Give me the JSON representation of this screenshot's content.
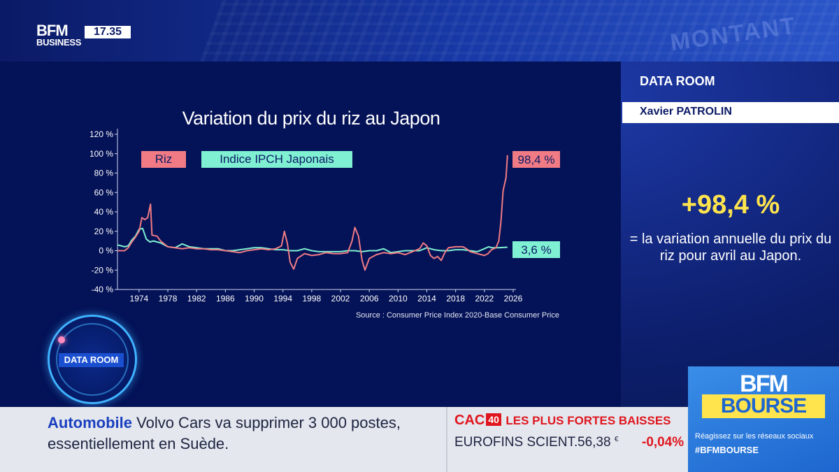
{
  "header": {
    "logo_brand": "BFM",
    "logo_sub": "BUSINESS",
    "clock": "17.35",
    "background_word": "MONTANT"
  },
  "sidebar": {
    "section": "DATA ROOM",
    "author": "Xavier PATROLIN",
    "highlight_value": "+98,4 %",
    "highlight_text": "= la variation annuelle du prix du riz pour avril au Japon."
  },
  "badge": {
    "label": "DATA ROOM"
  },
  "ticker": {
    "category": "Automobile",
    "headline_line1": "Volvo Cars va supprimer 3 000 postes,",
    "headline_line2": "essentiellement en Suède."
  },
  "market": {
    "index_name": "CAC",
    "index_number": "40",
    "list_title": "LES PLUS FORTES BAISSES",
    "stock": {
      "name": "EUROFINS SCIENT.",
      "price": "56,38",
      "currency": "€",
      "change": "-0,04%"
    }
  },
  "promo": {
    "brand": "BFM",
    "product": "BOURSE",
    "line": "Réagissez sur les réseaux sociaux",
    "hashtag": "#BFMBOURSE"
  },
  "colors": {
    "rice": "#f07b84",
    "cpi": "#7ff0d2",
    "highlight": "#ffe44d"
  },
  "chart_data": {
    "type": "line",
    "title": "Variation du prix du riz au Japon",
    "source": "Source : Consumer Price Index 2020-Base Consumer Price",
    "ylim": [
      -40,
      120
    ],
    "xlim": [
      1971,
      2026
    ],
    "y_ticks": [
      "120 %",
      "100 %",
      "80 %",
      "60 %",
      "40 %",
      "20 %",
      "0 %",
      "-20 %",
      "-40 %"
    ],
    "x_ticks": [
      "1974",
      "1978",
      "1982",
      "1986",
      "1990",
      "1994",
      "1998",
      "2002",
      "2006",
      "2010",
      "2014",
      "2018",
      "2022",
      "2026"
    ],
    "end_labels": {
      "rice": "98,4 %",
      "cpi": "3,6 %"
    },
    "series": [
      {
        "name": "Riz",
        "color": "#f07b84",
        "points": [
          [
            1971.0,
            0
          ],
          [
            1972.0,
            0
          ],
          [
            1972.5,
            3
          ],
          [
            1973.0,
            9
          ],
          [
            1973.5,
            14
          ],
          [
            1974.0,
            20
          ],
          [
            1974.4,
            34
          ],
          [
            1974.8,
            32
          ],
          [
            1975.2,
            34
          ],
          [
            1975.6,
            48
          ],
          [
            1975.8,
            16
          ],
          [
            1976.5,
            15
          ],
          [
            1977.0,
            10
          ],
          [
            1978.0,
            4
          ],
          [
            1979.0,
            3
          ],
          [
            1980.0,
            2
          ],
          [
            1981.0,
            3
          ],
          [
            1982.0,
            2
          ],
          [
            1983.0,
            2
          ],
          [
            1984.0,
            1
          ],
          [
            1985.0,
            1
          ],
          [
            1986.0,
            0
          ],
          [
            1987.0,
            -1
          ],
          [
            1988.0,
            -2
          ],
          [
            1989.0,
            0
          ],
          [
            1990.0,
            1
          ],
          [
            1991.0,
            2
          ],
          [
            1992.0,
            1
          ],
          [
            1993.0,
            2
          ],
          [
            1993.8,
            5
          ],
          [
            1994.2,
            20
          ],
          [
            1994.6,
            8
          ],
          [
            1995.0,
            -12
          ],
          [
            1995.5,
            -19
          ],
          [
            1996.0,
            -8
          ],
          [
            1997.0,
            -3
          ],
          [
            1998.0,
            -5
          ],
          [
            1999.0,
            -4
          ],
          [
            2000.0,
            -2
          ],
          [
            2001.0,
            -3
          ],
          [
            2002.0,
            -3
          ],
          [
            2003.0,
            -2
          ],
          [
            2003.6,
            10
          ],
          [
            2004.0,
            24
          ],
          [
            2004.5,
            15
          ],
          [
            2005.0,
            -10
          ],
          [
            2005.4,
            -20
          ],
          [
            2006.0,
            -8
          ],
          [
            2007.0,
            -4
          ],
          [
            2008.0,
            -2
          ],
          [
            2009.0,
            -3
          ],
          [
            2010.0,
            -2
          ],
          [
            2011.0,
            -4
          ],
          [
            2012.0,
            -1
          ],
          [
            2013.0,
            2
          ],
          [
            2013.5,
            8
          ],
          [
            2014.0,
            5
          ],
          [
            2014.5,
            -5
          ],
          [
            2015.0,
            -8
          ],
          [
            2015.5,
            -6
          ],
          [
            2016.0,
            -10
          ],
          [
            2016.5,
            -2
          ],
          [
            2017.0,
            3
          ],
          [
            2018.0,
            4
          ],
          [
            2019.0,
            4
          ],
          [
            2019.5,
            2
          ],
          [
            2020.0,
            -1
          ],
          [
            2021.0,
            -3
          ],
          [
            2022.0,
            -5
          ],
          [
            2022.5,
            -3
          ],
          [
            2023.0,
            1
          ],
          [
            2023.6,
            3
          ],
          [
            2024.0,
            10
          ],
          [
            2024.3,
            30
          ],
          [
            2024.6,
            62
          ],
          [
            2025.0,
            75
          ],
          [
            2025.2,
            98.4
          ]
        ]
      },
      {
        "name": "Indice IPCH Japonais",
        "color": "#7ff0d2",
        "points": [
          [
            1971.0,
            6
          ],
          [
            1972.0,
            4
          ],
          [
            1972.5,
            5
          ],
          [
            1973.0,
            11
          ],
          [
            1973.5,
            15
          ],
          [
            1974.0,
            22
          ],
          [
            1974.5,
            23
          ],
          [
            1975.0,
            12
          ],
          [
            1975.5,
            9
          ],
          [
            1976.0,
            10
          ],
          [
            1977.0,
            8
          ],
          [
            1978.0,
            4
          ],
          [
            1979.0,
            3
          ],
          [
            1980.0,
            7
          ],
          [
            1981.0,
            4
          ],
          [
            1982.0,
            3
          ],
          [
            1983.0,
            2
          ],
          [
            1984.0,
            2
          ],
          [
            1985.0,
            2
          ],
          [
            1986.0,
            0
          ],
          [
            1987.0,
            0
          ],
          [
            1988.0,
            1
          ],
          [
            1989.0,
            2
          ],
          [
            1990.0,
            3
          ],
          [
            1991.0,
            3
          ],
          [
            1992.0,
            2
          ],
          [
            1993.0,
            1
          ],
          [
            1994.0,
            1
          ],
          [
            1995.0,
            0
          ],
          [
            1996.0,
            0
          ],
          [
            1997.0,
            2
          ],
          [
            1998.0,
            0
          ],
          [
            1999.0,
            -1
          ],
          [
            2000.0,
            -1
          ],
          [
            2001.0,
            -1
          ],
          [
            2002.0,
            -1
          ],
          [
            2003.0,
            0
          ],
          [
            2004.0,
            0
          ],
          [
            2005.0,
            -1
          ],
          [
            2006.0,
            0
          ],
          [
            2007.0,
            0
          ],
          [
            2008.0,
            2
          ],
          [
            2009.0,
            -2
          ],
          [
            2010.0,
            -1
          ],
          [
            2011.0,
            0
          ],
          [
            2012.0,
            0
          ],
          [
            2013.0,
            0
          ],
          [
            2014.0,
            3
          ],
          [
            2015.0,
            1
          ],
          [
            2016.0,
            0
          ],
          [
            2017.0,
            0
          ],
          [
            2018.0,
            1
          ],
          [
            2019.0,
            1
          ],
          [
            2020.0,
            0
          ],
          [
            2021.0,
            -1
          ],
          [
            2022.0,
            2
          ],
          [
            2022.6,
            4
          ],
          [
            2023.0,
            3
          ],
          [
            2024.0,
            3
          ],
          [
            2025.2,
            3.6
          ]
        ]
      }
    ]
  }
}
